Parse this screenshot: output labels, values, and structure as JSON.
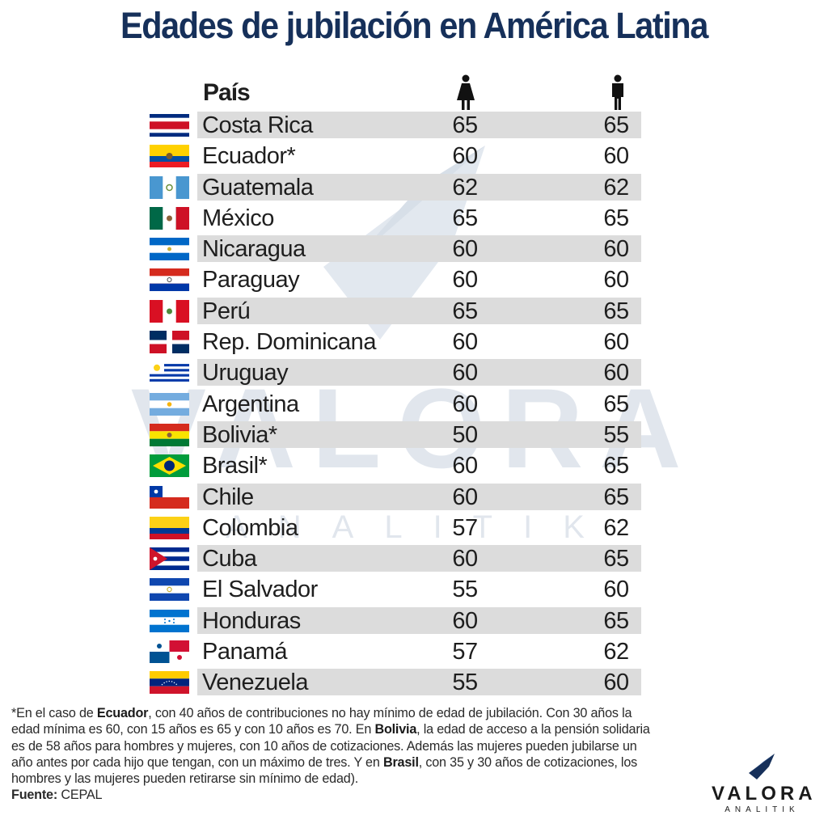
{
  "title": "Edades de jubilación en América Latina",
  "watermark": {
    "word": "VALORA",
    "sub": "ANALITIK"
  },
  "chart_data": {
    "type": "table",
    "title": "Edades de jubilación en América Latina",
    "columns": [
      "País",
      "female-icon",
      "male-icon"
    ],
    "column_header": "País",
    "rows": [
      {
        "country": "Costa Rica",
        "flag": "costa-rica-flag",
        "women": 65,
        "men": 65
      },
      {
        "country": "Ecuador*",
        "flag": "ecuador-flag",
        "women": 60,
        "men": 60
      },
      {
        "country": "Guatemala",
        "flag": "guatemala-flag",
        "women": 62,
        "men": 62
      },
      {
        "country": "México",
        "flag": "mexico-flag",
        "women": 65,
        "men": 65
      },
      {
        "country": "Nicaragua",
        "flag": "nicaragua-flag",
        "women": 60,
        "men": 60
      },
      {
        "country": "Paraguay",
        "flag": "paraguay-flag",
        "women": 60,
        "men": 60
      },
      {
        "country": "Perú",
        "flag": "peru-flag",
        "women": 65,
        "men": 65
      },
      {
        "country": "Rep. Dominicana",
        "flag": "dominican-republic-flag",
        "women": 60,
        "men": 60
      },
      {
        "country": "Uruguay",
        "flag": "uruguay-flag",
        "women": 60,
        "men": 60
      },
      {
        "country": "Argentina",
        "flag": "argentina-flag",
        "women": 60,
        "men": 65
      },
      {
        "country": "Bolivia*",
        "flag": "bolivia-flag",
        "women": 50,
        "men": 55
      },
      {
        "country": "Brasil*",
        "flag": "brazil-flag",
        "women": 60,
        "men": 65
      },
      {
        "country": "Chile",
        "flag": "chile-flag",
        "women": 60,
        "men": 65
      },
      {
        "country": "Colombia",
        "flag": "colombia-flag",
        "women": 57,
        "men": 62
      },
      {
        "country": "Cuba",
        "flag": "cuba-flag",
        "women": 60,
        "men": 65
      },
      {
        "country": "El Salvador",
        "flag": "el-salvador-flag",
        "women": 55,
        "men": 60
      },
      {
        "country": "Honduras",
        "flag": "honduras-flag",
        "women": 60,
        "men": 65
      },
      {
        "country": "Panamá",
        "flag": "panama-flag",
        "women": 57,
        "men": 62
      },
      {
        "country": "Venezuela",
        "flag": "venezuela-flag",
        "women": 55,
        "men": 60
      }
    ]
  },
  "note": {
    "p1": "*En el caso de ",
    "b1": "Ecuador",
    "p2": ", con 40 años de contribuciones no hay mínimo de edad de jubilación. Con 30 años la edad mínima es 60, con 15 años es 65 y con 10 años es 70. En ",
    "b2": "Bolivia",
    "p3": ", la edad de acceso a la pensión solidaria es de 58 años para hombres y mujeres, con 10 años de cotizaciones. Además las mujeres pueden jubilarse un año antes por cada hijo que tengan, con un máximo de tres. Y en ",
    "b3": "Brasil",
    "p4": ", con 35 y 30 años de cotizaciones, los hombres y las mujeres pueden retirarse sin mínimo de edad)."
  },
  "source": {
    "label": "Fuente:",
    "value": "CEPAL"
  },
  "logo": {
    "name": "VALORA",
    "sub": "ANALITIK"
  },
  "colors": {
    "title": "#16305a",
    "band": "#dcdcdc",
    "watermark": "#c9d3e0"
  }
}
